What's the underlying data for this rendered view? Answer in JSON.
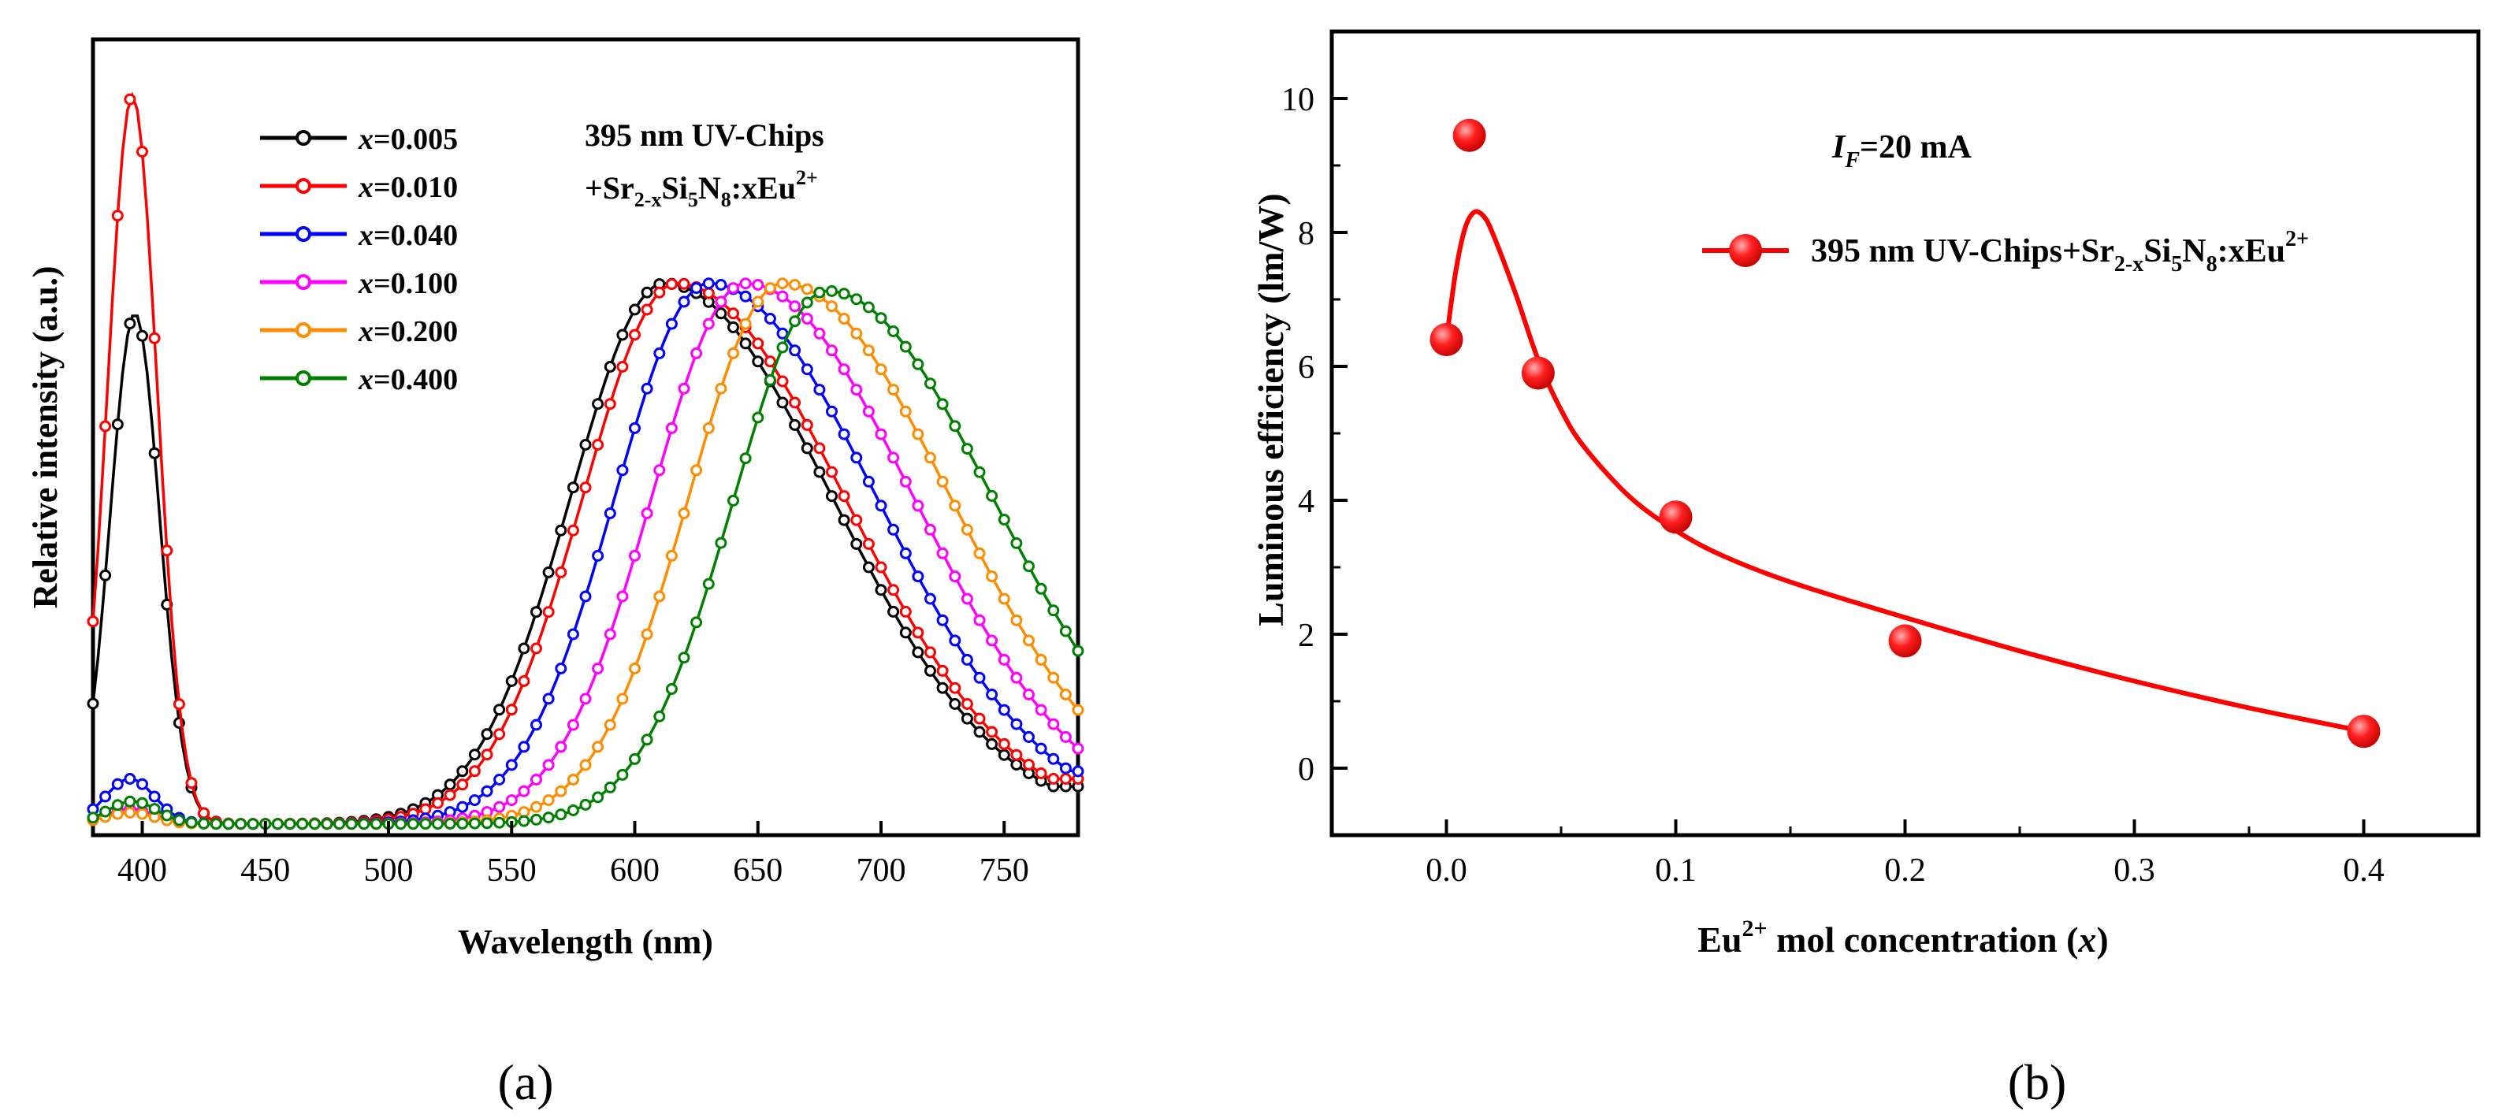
{
  "figure": {
    "caption_a": "(a)",
    "caption_b": "(b)"
  },
  "chart_data": [
    {
      "id": "a",
      "type": "line",
      "title": "",
      "xlabel": "Wavelength (nm)",
      "ylabel": "Relative intensity (a.u.)",
      "xlim": [
        380,
        780
      ],
      "ylim": [
        0,
        1.06
      ],
      "x_ticks": [
        400,
        450,
        500,
        550,
        600,
        650,
        700,
        750
      ],
      "y_ticks_shown": false,
      "legend_position": "top-left",
      "annotation": {
        "line1": "395 nm UV-Chips",
        "line2_prefix": "+Sr",
        "line2_sub1": "2-x",
        "line2_mid1": "Si",
        "line2_sub2": "5",
        "line2_mid2": "N",
        "line2_sub3": "8",
        "line2_mid3": ":xEu",
        "line2_sup": "2+"
      },
      "series": [
        {
          "name": "x=0.005",
          "var": "x",
          "value": "=0.005",
          "color": "#000000",
          "uv_peak_nm": 397,
          "uv_peak_height": 0.68,
          "red_peak_nm": 612,
          "red_peak_height": 0.72,
          "red_tail_end": 0.05
        },
        {
          "name": "x=0.010",
          "var": "x",
          "value": "=0.010",
          "color": "#ff0000",
          "uv_peak_nm": 396,
          "uv_peak_height": 0.97,
          "red_peak_nm": 617,
          "red_peak_height": 0.72,
          "red_tail_end": 0.06
        },
        {
          "name": "x=0.040",
          "var": "x",
          "value": "=0.040",
          "color": "#0000ff",
          "uv_peak_nm": 395,
          "uv_peak_height": 0.06,
          "red_peak_nm": 630,
          "red_peak_height": 0.72,
          "red_tail_end": 0.07
        },
        {
          "name": "x=0.100",
          "var": "x",
          "value": "=0.100",
          "color": "#ff00ff",
          "uv_peak_nm": 395,
          "uv_peak_height": 0.02,
          "red_peak_nm": 645,
          "red_peak_height": 0.72,
          "red_tail_end": 0.1
        },
        {
          "name": "x=0.200",
          "var": "x",
          "value": "=0.200",
          "color": "#ff8c00",
          "uv_peak_nm": 395,
          "uv_peak_height": 0.015,
          "red_peak_nm": 660,
          "red_peak_height": 0.72,
          "red_tail_end": 0.14
        },
        {
          "name": "x=0.400",
          "var": "x",
          "value": "=0.400",
          "color": "#008000",
          "uv_peak_nm": 396,
          "uv_peak_height": 0.03,
          "red_peak_nm": 678,
          "red_peak_height": 0.71,
          "red_tail_end": 0.2
        }
      ]
    },
    {
      "id": "b",
      "type": "scatter",
      "title": "",
      "xlabel_prefix": "Eu",
      "xlabel_sup": "2+",
      "xlabel_mid": " mol concentration (",
      "xlabel_var": "x",
      "xlabel_suffix": ")",
      "ylabel": "Luminous efficiency (lm/W)",
      "xlim": [
        -0.05,
        0.45
      ],
      "ylim": [
        -1,
        11
      ],
      "x_ticks": [
        "0.0",
        "0.1",
        "0.2",
        "0.3",
        "0.4"
      ],
      "x_tick_values": [
        0.0,
        0.1,
        0.2,
        0.3,
        0.4
      ],
      "y_ticks": [
        "0",
        "2",
        "4",
        "6",
        "8",
        "10"
      ],
      "y_tick_values": [
        0,
        2,
        4,
        6,
        8,
        10
      ],
      "legend_position": "top-right",
      "color": "#ff0000",
      "annotation": {
        "var": "I",
        "sub": "F",
        "rest": "=20 mA"
      },
      "legend": {
        "prefix": "395 nm UV-Chips+Sr",
        "sub1": "2-x",
        "mid1": "Si",
        "sub2": "5",
        "mid2": "N",
        "sub3": "8",
        "mid3": ":xEu",
        "sup": "2+"
      },
      "points": {
        "x": [
          0.0,
          0.01,
          0.04,
          0.1,
          0.2,
          0.4
        ],
        "y": [
          6.4,
          9.45,
          5.9,
          3.75,
          1.9,
          0.55
        ]
      },
      "fit_curve": {
        "x": [
          0.0,
          0.004,
          0.008,
          0.012,
          0.016,
          0.02,
          0.03,
          0.04,
          0.05,
          0.06,
          0.08,
          0.1,
          0.12,
          0.15,
          0.2,
          0.25,
          0.3,
          0.35,
          0.4
        ],
        "y": [
          6.4,
          7.4,
          8.05,
          8.3,
          8.25,
          8.0,
          7.1,
          6.1,
          5.35,
          4.8,
          4.05,
          3.55,
          3.18,
          2.78,
          2.25,
          1.75,
          1.3,
          0.9,
          0.55
        ]
      }
    }
  ]
}
